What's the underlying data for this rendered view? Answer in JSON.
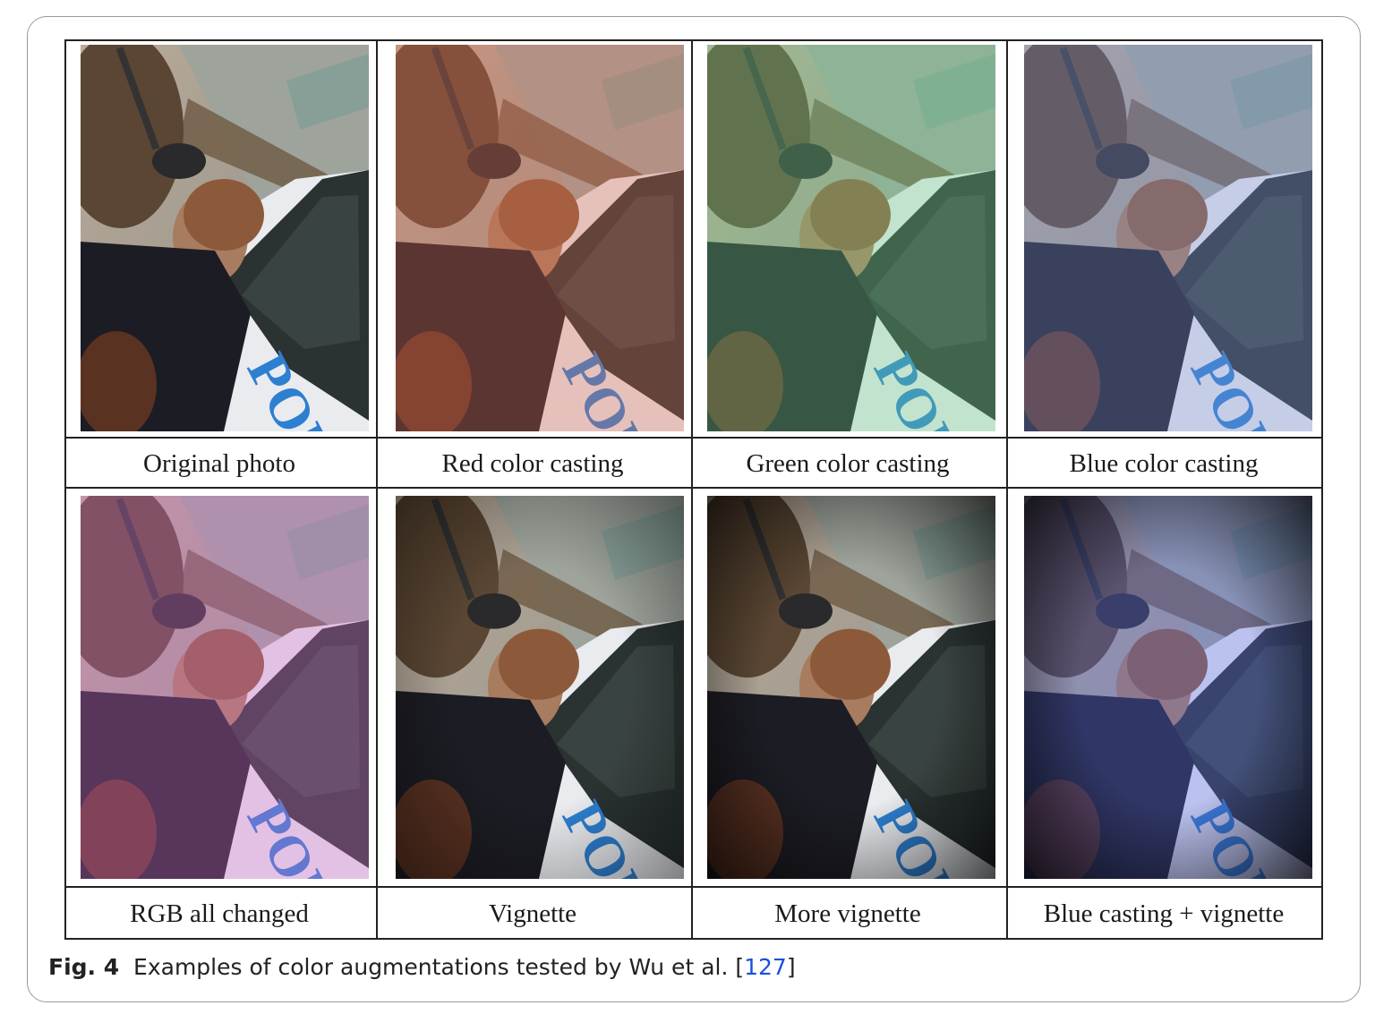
{
  "figure": {
    "number_label": "Fig. 4",
    "caption_text": "Examples of color augmentations tested by Wu et al. [",
    "ref_number": "127",
    "caption_close": "]",
    "accent_color": "#1a4fd8"
  },
  "panels": [
    {
      "label": "Original photo",
      "tint": "none",
      "vignette": 0
    },
    {
      "label": "Red color casting",
      "tint": "#e06a50",
      "vignette": 0
    },
    {
      "label": "Green color casting",
      "tint": "#6fd28a",
      "vignette": 0
    },
    {
      "label": "Blue color casting",
      "tint": "#7a8fd8",
      "vignette": 0
    },
    {
      "label": "RGB all changed",
      "tint": "#d66ad0",
      "vignette": 0
    },
    {
      "label": "Vignette",
      "tint": "none",
      "vignette": 0.45
    },
    {
      "label": "More vignette",
      "tint": "none",
      "vignette": 0.7
    },
    {
      "label": "Blue casting + vignette",
      "tint": "#5a6cf0",
      "vignette": 0.75
    }
  ],
  "photo_text": "POL"
}
